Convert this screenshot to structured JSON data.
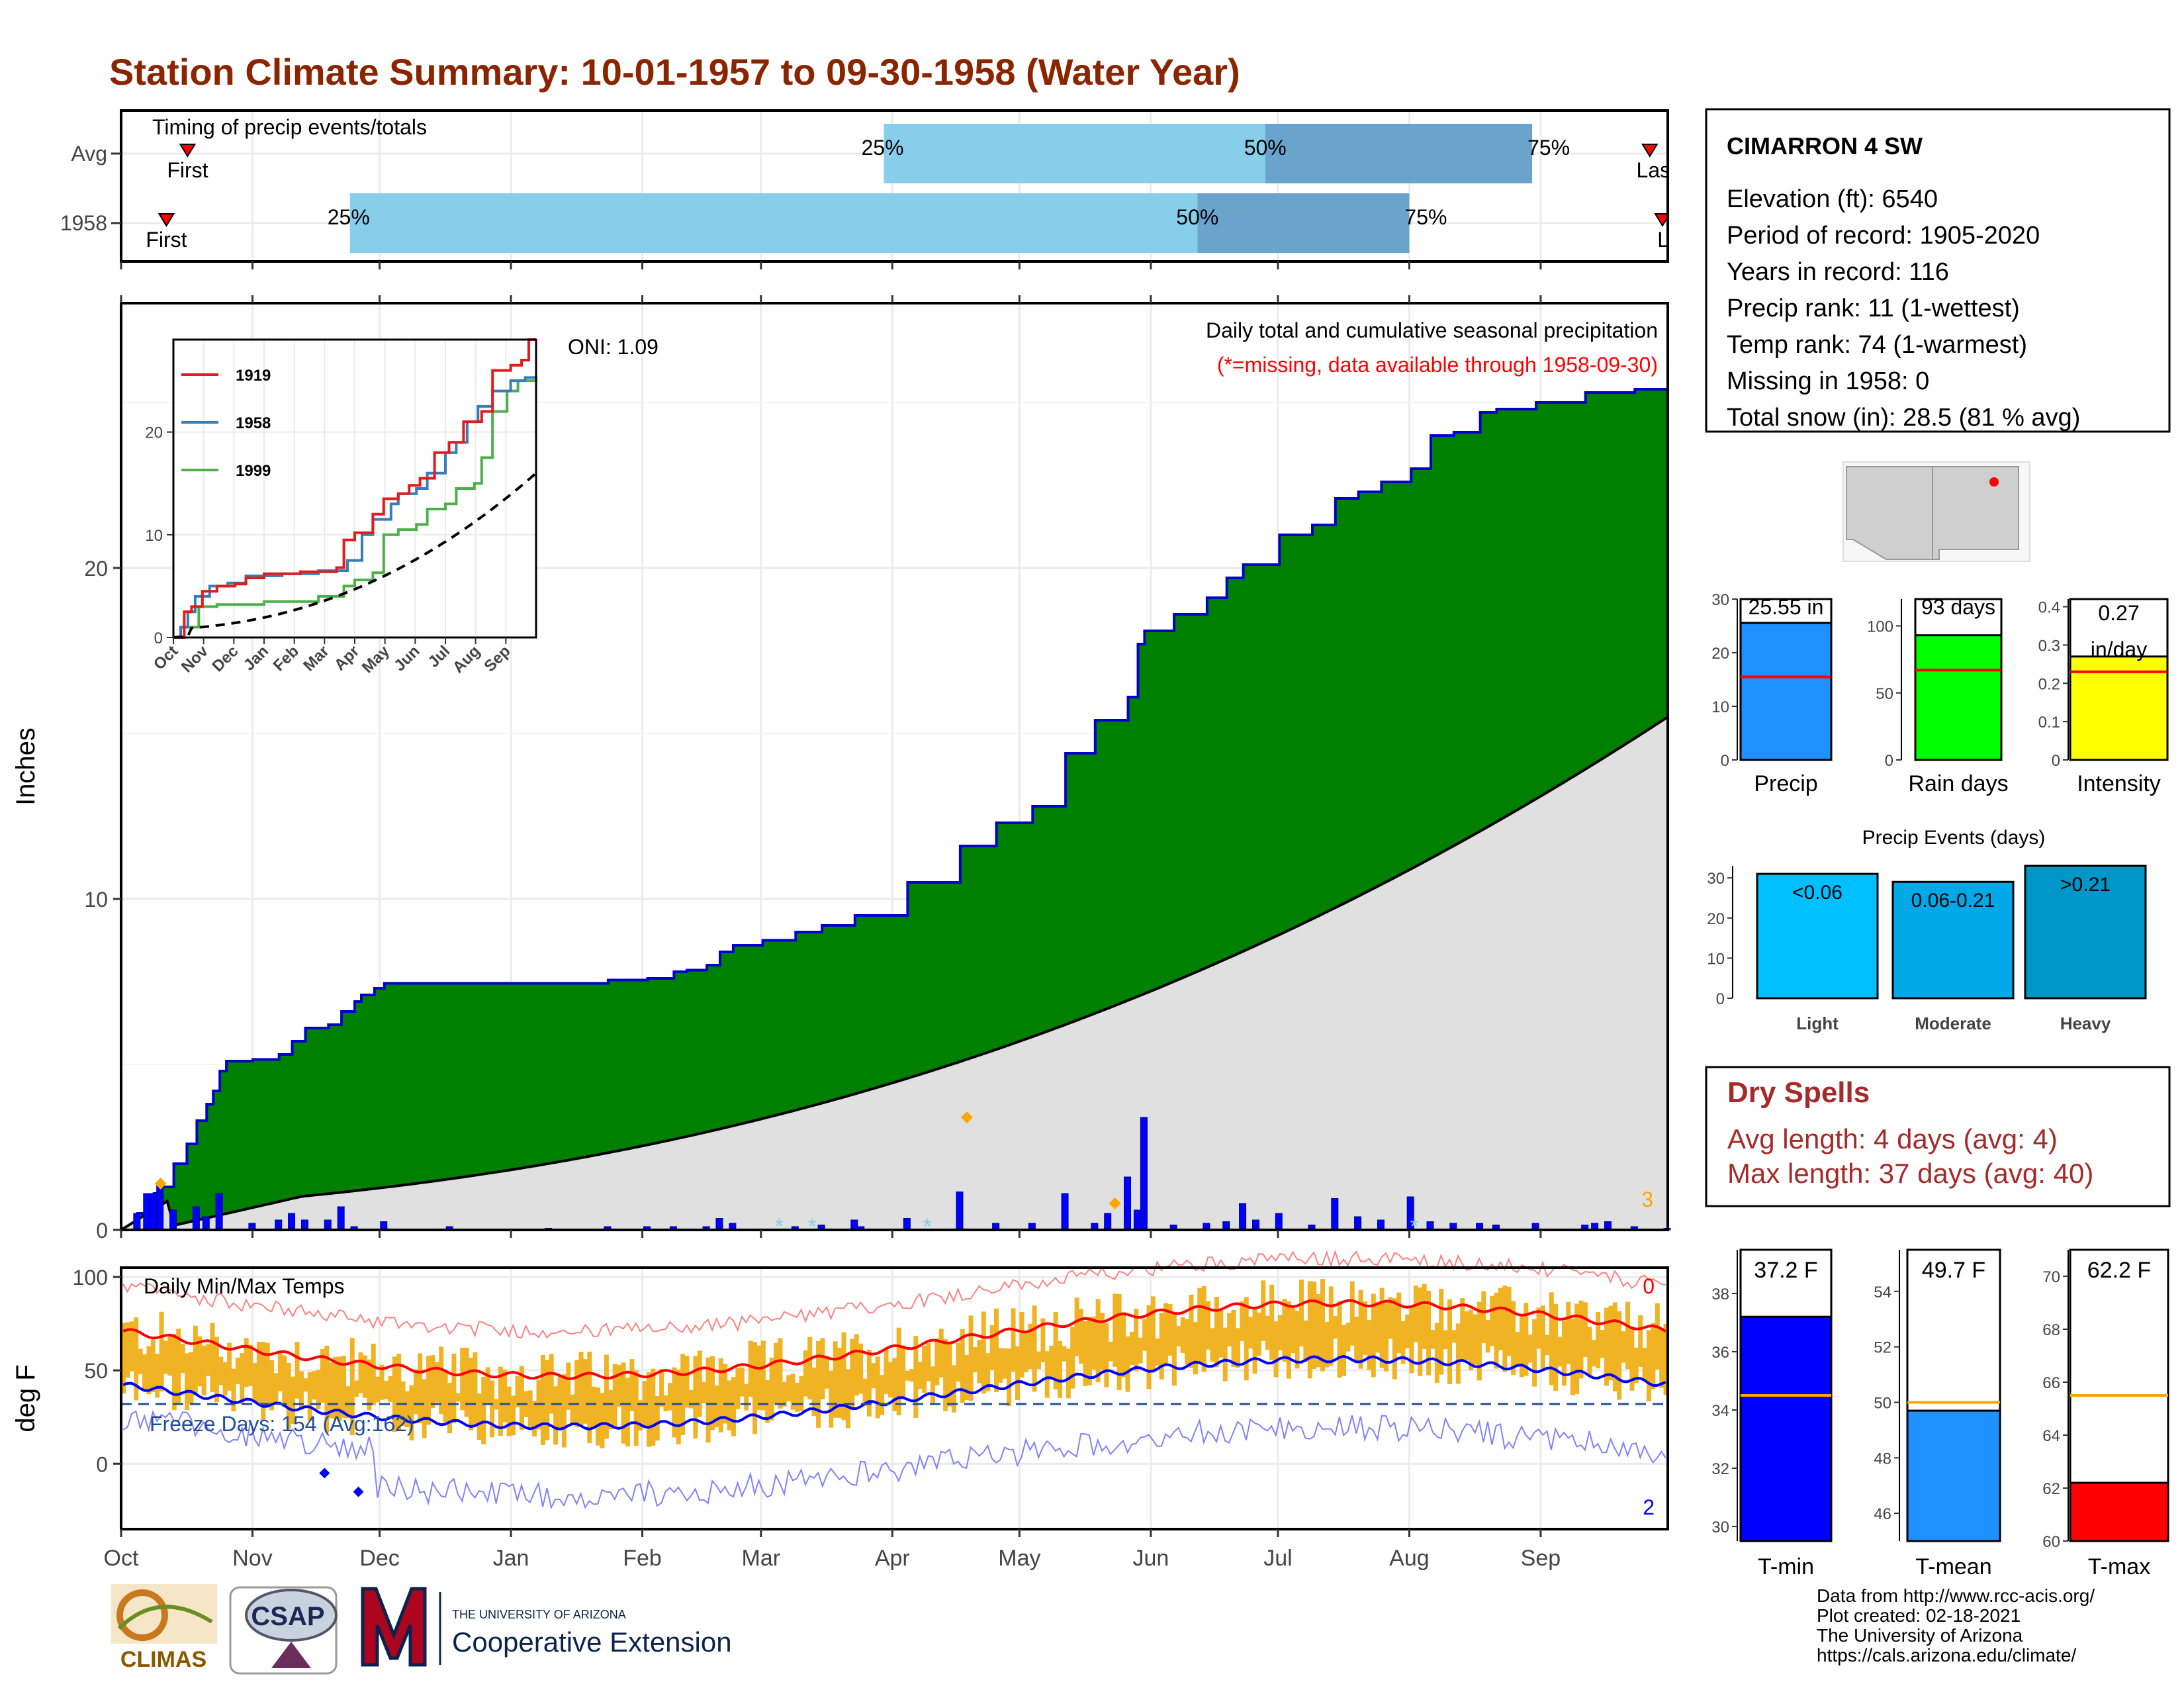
{
  "title": "Station Climate Summary: 10-01-1957 to 09-30-1958 (Water Year)",
  "colors": {
    "title": "#8b2500",
    "precip_fill": "#008000",
    "avg_fill": "#e0e0e0",
    "cum_line": "#0000cd",
    "bar_light": "#87ceeb",
    "bar_dark": "#6aa3cc",
    "temp_bars": "#f0b323",
    "tmax_line": "#ff0000",
    "tmin_line": "#0000ff",
    "dry_spells": "#a52a2a"
  },
  "timing": {
    "title": "Timing of precip events/totals",
    "rows": [
      "Avg",
      "1958"
    ],
    "first_label": "First",
    "last_label": "Last",
    "last_label_short": "La",
    "p25": "25%",
    "p50": "50%",
    "p75": "75%",
    "avg_day": {
      "first": 11,
      "q25": 180,
      "q50": 270,
      "q75": 333,
      "last": 362
    },
    "yr_day": {
      "first": 6,
      "q25": 54,
      "q50": 254,
      "q75": 304,
      "last": 365
    }
  },
  "months": [
    "Oct",
    "Nov",
    "Dec",
    "Jan",
    "Feb",
    "Mar",
    "Apr",
    "May",
    "Jun",
    "Jul",
    "Aug",
    "Sep"
  ],
  "main": {
    "ylabel": "Inches",
    "yticks": [
      0,
      10,
      20
    ],
    "ylim": [
      0,
      28
    ],
    "header1": "Daily total and cumulative seasonal precipitation",
    "header2": "(*=missing, data available through 1958-09-30)",
    "oni": "ONI: 1.09",
    "count_label": "3"
  },
  "inset": {
    "yticks": [
      0,
      10,
      20
    ],
    "ylim": [
      0,
      29
    ],
    "months": [
      "Oct",
      "Nov",
      "Dec",
      "Jan",
      "Feb",
      "Mar",
      "Apr",
      "May",
      "Jun",
      "Jul",
      "Aug",
      "Sep"
    ],
    "legend": [
      "1919",
      "1958",
      "1999"
    ],
    "legend_colors": [
      "#e41a1c",
      "#377eb8",
      "#4daf4a"
    ]
  },
  "temp": {
    "ylabel": "deg F",
    "yticks": [
      0,
      50,
      100
    ],
    "title": "Daily Min/Max Temps",
    "freeze_label": "Freeze Days: 154 (Avg:162)",
    "count_top": "0",
    "count_bottom": "2",
    "freeze_line": 32
  },
  "station": {
    "name": "CIMARRON 4 SW",
    "lines": [
      "Elevation (ft): 6540",
      "Period of record: 1905-2020",
      "Years in record: 116",
      "Precip rank: 11 (1-wettest)",
      "Temp rank: 74 (1-warmest)",
      "Missing in 1958: 0",
      "Total snow (in): 28.5 (81 % avg)"
    ]
  },
  "summary_bars": [
    {
      "label": "Precip",
      "value_text": "25.55 in",
      "value": 25.55,
      "avg": 15.5,
      "ymax": 30,
      "ticks": [
        0,
        10,
        20,
        30
      ],
      "color": "#1e90ff"
    },
    {
      "label": "Rain days",
      "value_text": "93 days",
      "value": 93,
      "avg": 67,
      "ymax": 120,
      "ticks": [
        0,
        50,
        100
      ],
      "color": "#00ff00"
    },
    {
      "label": "Intensity",
      "value_text": "0.27 in/day",
      "value": 0.27,
      "avg": 0.23,
      "ymax": 0.42,
      "ticks": [
        0.0,
        0.1,
        0.2,
        0.3,
        0.4
      ],
      "color": "#ffff00"
    }
  ],
  "events": {
    "title": "Precip Events (days)",
    "ticks": [
      0,
      10,
      20,
      30
    ],
    "ymax": 33,
    "items": [
      {
        "label": "Light",
        "bar_text": "<0.06",
        "value": 31,
        "color": "#00bfff"
      },
      {
        "label": "Moderate",
        "bar_text": "0.06-0.21",
        "value": 29,
        "color": "#00a8e8"
      },
      {
        "label": "Heavy",
        "bar_text": ">0.21",
        "value": 33,
        "color": "#0096c7"
      }
    ]
  },
  "dry_spells": {
    "title": "Dry Spells",
    "line1": "Avg length: 4 days (avg: 4)",
    "line2": "Max length: 37 days (avg: 40)"
  },
  "temp_bars": [
    {
      "label": "T-min",
      "value_text": "37.2 F",
      "value": 37.2,
      "avg": 34.5,
      "ymin": 29.5,
      "ymax": 39.5,
      "ticks": [
        30,
        32,
        34,
        36,
        38
      ],
      "color": "#0000ff"
    },
    {
      "label": "T-mean",
      "value_text": "49.7 F",
      "value": 49.7,
      "avg": 50.0,
      "ymin": 45,
      "ymax": 55.5,
      "ticks": [
        46,
        48,
        50,
        52,
        54
      ],
      "color": "#1e90ff"
    },
    {
      "label": "T-max",
      "value_text": "62.2 F",
      "value": 62.2,
      "avg": 65.5,
      "ymin": 60,
      "ymax": 71,
      "ticks": [
        60,
        62,
        64,
        66,
        68,
        70
      ],
      "color": "#ff0000"
    }
  ],
  "credits": [
    "Data from http://www.rcc-acis.org/",
    "Plot created: 02-18-2021",
    "The University of Arizona",
    "https://cals.arizona.edu/climate/"
  ],
  "logos": {
    "climas": "CLIMAS",
    "csap": "CSAP",
    "ua_small": "THE UNIVERSITY OF ARIZONA",
    "ua_big": "Cooperative Extension"
  },
  "chart_data": {
    "type": "area",
    "title": "Daily total and cumulative seasonal precipitation",
    "ylabel": "Inches",
    "ylim": [
      0,
      28
    ],
    "x_axis": "days of water year (Oct 1 1957 - Sep 30 1958)",
    "series": [
      {
        "name": "1958",
        "cumulative_steps_day_value": [
          [
            0,
            0
          ],
          [
            5,
            0.5
          ],
          [
            10,
            1.1
          ],
          [
            12,
            1.3
          ],
          [
            16,
            2.0
          ],
          [
            20,
            2.6
          ],
          [
            23,
            3.3
          ],
          [
            26,
            3.8
          ],
          [
            28,
            4.2
          ],
          [
            30,
            4.8
          ],
          [
            32,
            5.1
          ],
          [
            40,
            5.15
          ],
          [
            48,
            5.3
          ],
          [
            52,
            5.7
          ],
          [
            56,
            6.1
          ],
          [
            63,
            6.2
          ],
          [
            67,
            6.6
          ],
          [
            71,
            6.9
          ],
          [
            73,
            7.1
          ],
          [
            77,
            7.3
          ],
          [
            80,
            7.45
          ],
          [
            100,
            7.45
          ],
          [
            130,
            7.45
          ],
          [
            148,
            7.55
          ],
          [
            160,
            7.6
          ],
          [
            168,
            7.8
          ],
          [
            172,
            7.85
          ],
          [
            178,
            8.0
          ],
          [
            182,
            8.4
          ],
          [
            186,
            8.6
          ],
          [
            195,
            8.75
          ],
          [
            205,
            9.0
          ],
          [
            213,
            9.2
          ],
          [
            223,
            9.5
          ],
          [
            239,
            10.5
          ],
          [
            255,
            11.6
          ],
          [
            266,
            12.3
          ],
          [
            277,
            12.8
          ],
          [
            287,
            14.4
          ],
          [
            296,
            15.4
          ],
          [
            306,
            16.1
          ],
          [
            309,
            17.7
          ],
          [
            311,
            18.1
          ],
          [
            320,
            18.6
          ],
          [
            330,
            19.1
          ],
          [
            336,
            19.7
          ],
          [
            341,
            20.1
          ],
          [
            352,
            21.0
          ],
          [
            362,
            21.3
          ],
          [
            369,
            22.1
          ],
          [
            376,
            22.3
          ],
          [
            383,
            22.6
          ],
          [
            392,
            23.0
          ],
          [
            398,
            24.0
          ],
          [
            405,
            24.1
          ],
          [
            413,
            24.7
          ],
          [
            418,
            24.8
          ],
          [
            430,
            25.0
          ],
          [
            445,
            25.3
          ],
          [
            460,
            25.4
          ],
          [
            470,
            25.55
          ]
        ]
      }
    ],
    "average_cumulative_end": 15.5,
    "marked_daily_values": [
      {
        "day": 12,
        "value": 1.4
      },
      {
        "day": 257,
        "value": 3.4
      },
      {
        "day": 302,
        "value": 0.8
      }
    ]
  }
}
